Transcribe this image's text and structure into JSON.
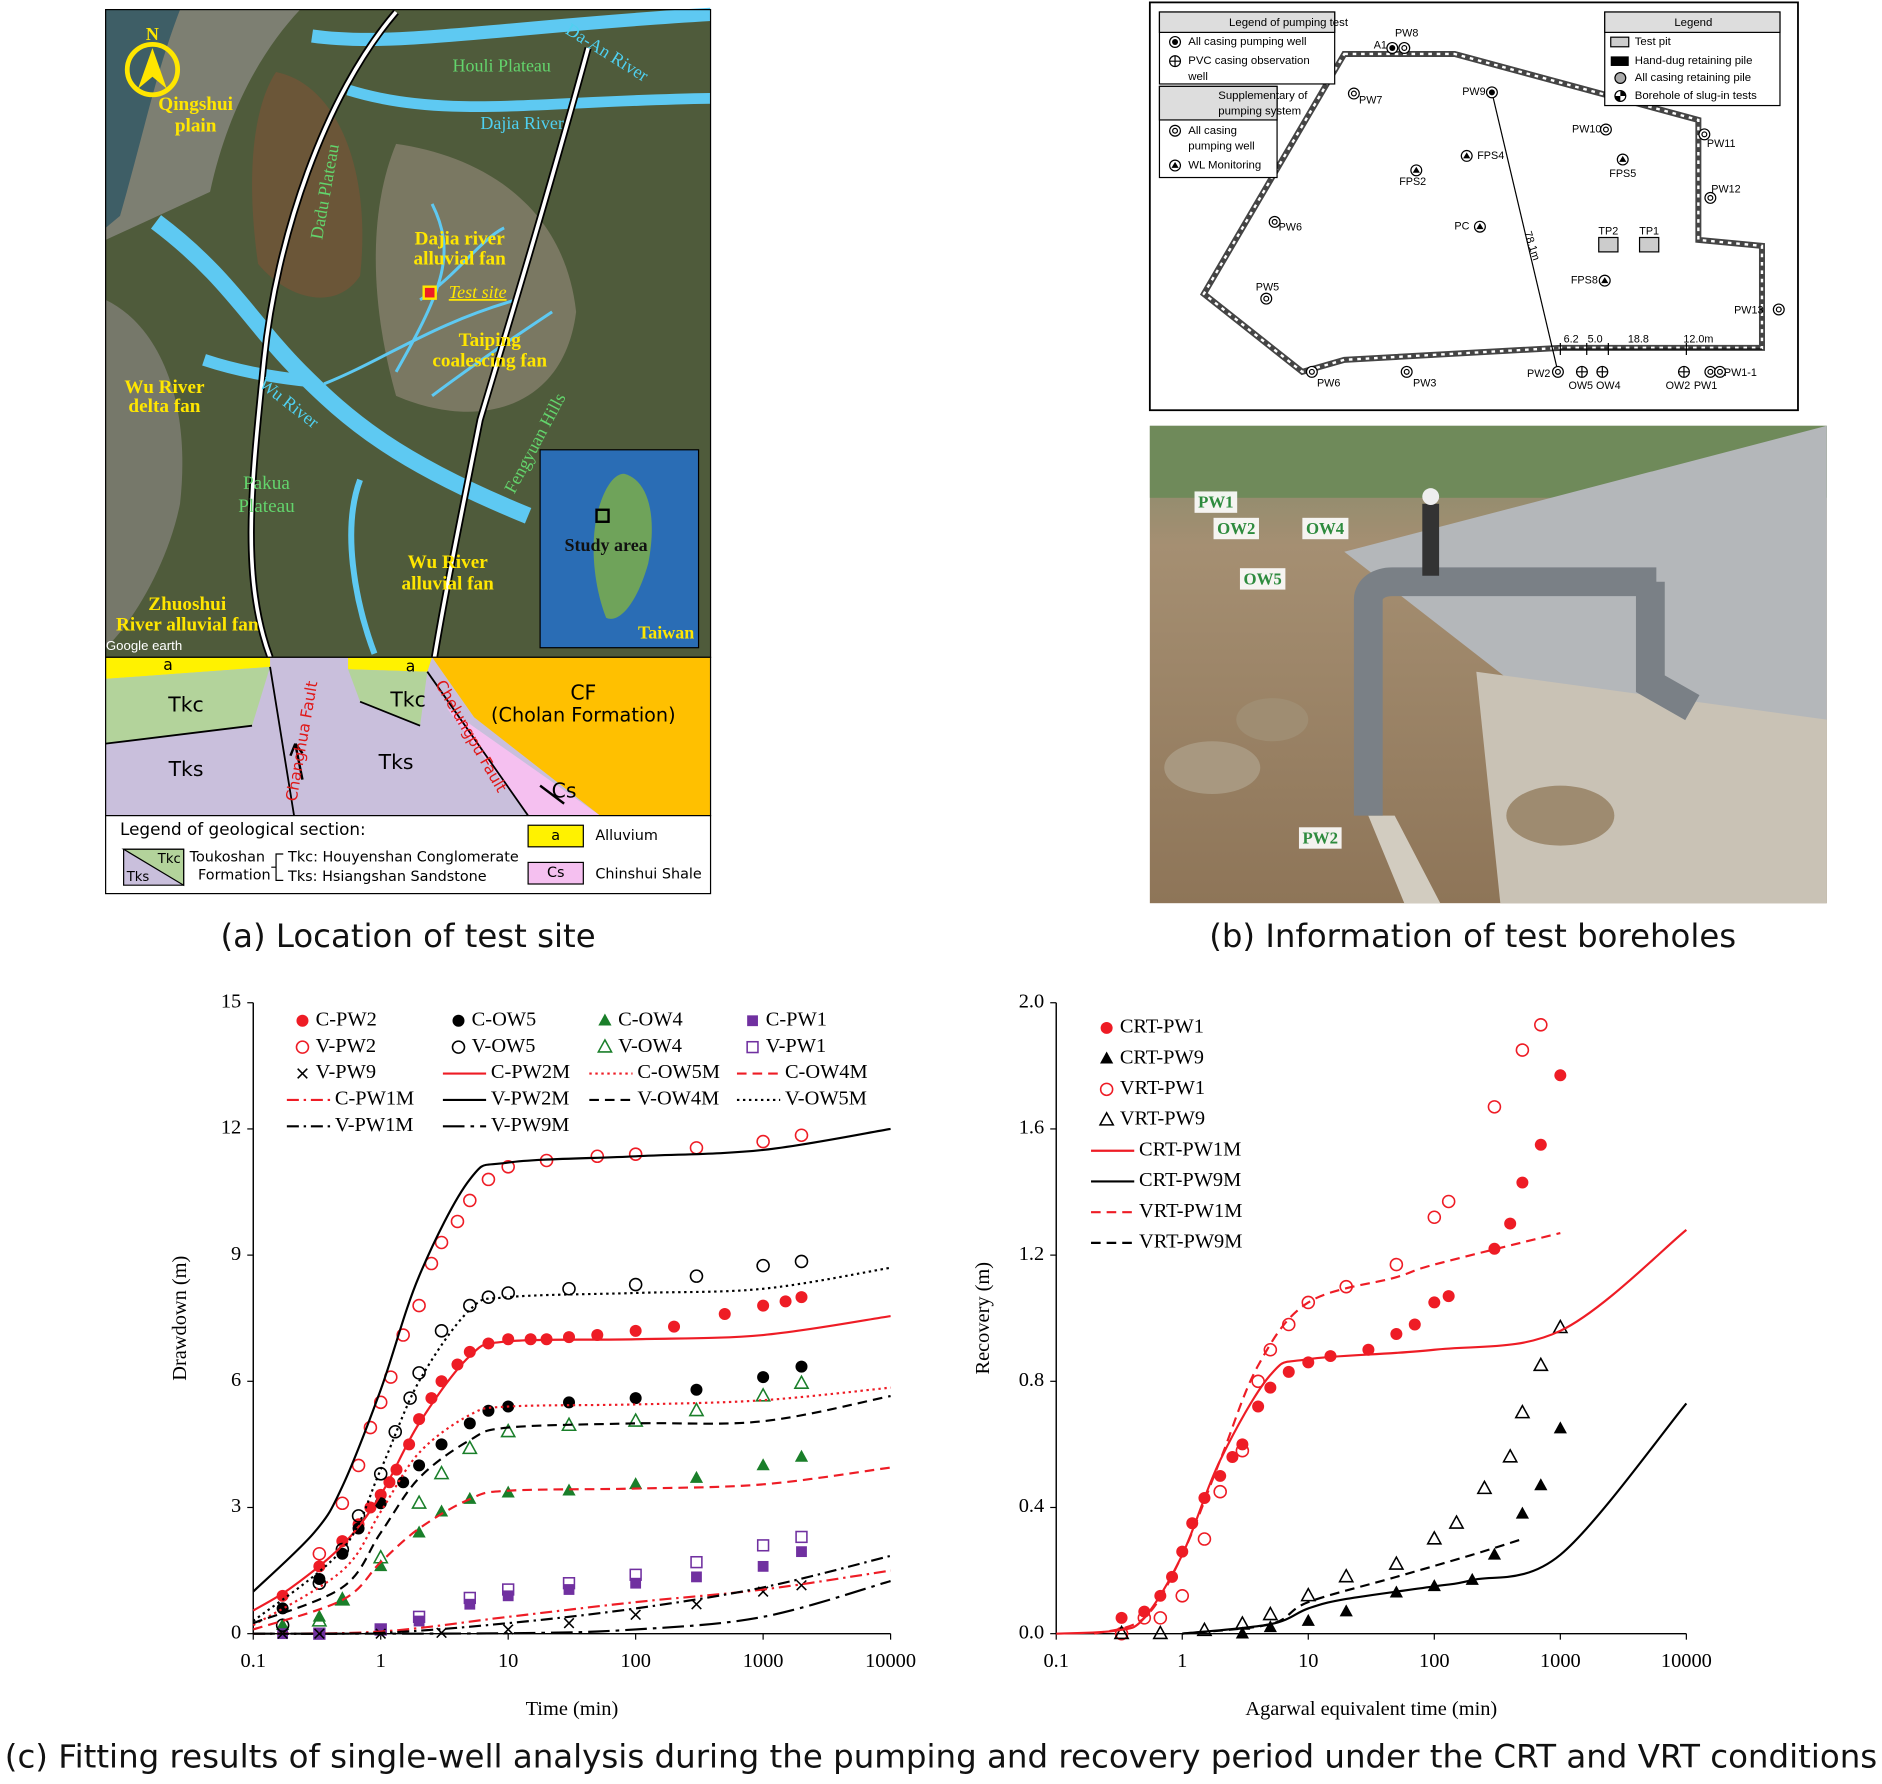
{
  "chart_data": [
    {
      "type": "scatter",
      "xlabel": "Time (min)",
      "ylabel": "Drawdown (m)",
      "xscale": "log",
      "xlim": [
        0.1,
        10000
      ],
      "xticks": [
        0.1,
        1,
        10,
        100,
        1000,
        10000
      ],
      "ylim": [
        0,
        15
      ],
      "yticks": [
        0,
        3,
        6,
        9,
        12,
        15
      ],
      "legend": "upper left",
      "series": [
        {
          "name": "C-PW2",
          "color": "#ee1c25",
          "marker": "circle-filled",
          "x": [
            0.17,
            0.33,
            0.5,
            0.67,
            0.83,
            1,
            1.17,
            1.33,
            1.67,
            2,
            2.5,
            3,
            4,
            5,
            7,
            10,
            15,
            20,
            30,
            50,
            100,
            200,
            500,
            1000,
            1500,
            2000
          ],
          "values": [
            0.9,
            1.6,
            2.2,
            2.6,
            3.0,
            3.3,
            3.6,
            3.9,
            4.5,
            5.1,
            5.6,
            6.0,
            6.4,
            6.7,
            6.9,
            7.0,
            7.0,
            7.0,
            7.05,
            7.1,
            7.2,
            7.3,
            7.6,
            7.8,
            7.9,
            8.0
          ]
        },
        {
          "name": "C-OW5",
          "color": "#000000",
          "marker": "circle-filled",
          "x": [
            0.17,
            0.33,
            0.5,
            0.67,
            1,
            1.5,
            2,
            3,
            5,
            7,
            10,
            30,
            100,
            300,
            1000,
            2000
          ],
          "values": [
            0.6,
            1.3,
            1.9,
            2.5,
            3.1,
            3.6,
            4.0,
            4.5,
            5.0,
            5.3,
            5.4,
            5.5,
            5.6,
            5.8,
            6.1,
            6.35
          ]
        },
        {
          "name": "C-OW4",
          "color": "#1a7f2a",
          "marker": "triangle-filled",
          "x": [
            0.17,
            0.33,
            0.5,
            1,
            2,
            3,
            5,
            10,
            30,
            100,
            300,
            1000,
            2000
          ],
          "values": [
            0.2,
            0.4,
            0.8,
            1.6,
            2.4,
            2.9,
            3.2,
            3.35,
            3.4,
            3.55,
            3.7,
            4.0,
            4.2
          ]
        },
        {
          "name": "C-PW1",
          "color": "#7030a0",
          "marker": "square-filled",
          "x": [
            0.17,
            0.33,
            1,
            2,
            5,
            10,
            30,
            100,
            300,
            1000,
            2000
          ],
          "values": [
            0,
            0,
            0.1,
            0.3,
            0.7,
            0.9,
            1.05,
            1.2,
            1.35,
            1.6,
            1.95
          ]
        },
        {
          "name": "V-PW2",
          "color": "#ee1c25",
          "marker": "circle-open",
          "x": [
            0.33,
            0.5,
            0.67,
            0.83,
            1,
            1.2,
            1.5,
            2,
            2.5,
            3,
            4,
            5,
            7,
            10,
            20,
            50,
            100,
            300,
            1000,
            2000
          ],
          "values": [
            1.9,
            3.1,
            4.0,
            4.9,
            5.5,
            6.1,
            7.1,
            7.8,
            8.8,
            9.3,
            9.8,
            10.3,
            10.8,
            11.1,
            11.25,
            11.35,
            11.4,
            11.55,
            11.7,
            11.85
          ]
        },
        {
          "name": "V-OW5",
          "color": "#000000",
          "marker": "circle-open",
          "x": [
            0.17,
            0.33,
            0.5,
            0.67,
            1,
            1.3,
            1.7,
            2,
            3,
            5,
            7,
            10,
            30,
            100,
            300,
            1000,
            2000
          ],
          "values": [
            0.2,
            1.2,
            2.0,
            2.8,
            3.8,
            4.8,
            5.6,
            6.2,
            7.2,
            7.8,
            8.0,
            8.1,
            8.2,
            8.3,
            8.5,
            8.75,
            8.85
          ]
        },
        {
          "name": "V-OW4",
          "color": "#1a7f2a",
          "marker": "triangle-open",
          "x": [
            0.33,
            0.5,
            1,
            2,
            3,
            5,
            10,
            30,
            100,
            300,
            1000,
            2000
          ],
          "values": [
            0.3,
            0.8,
            1.8,
            3.1,
            3.8,
            4.4,
            4.8,
            4.95,
            5.05,
            5.3,
            5.65,
            5.95
          ]
        },
        {
          "name": "V-PW1",
          "color": "#7030a0",
          "marker": "square-open",
          "x": [
            0.33,
            1,
            2,
            5,
            10,
            30,
            100,
            300,
            1000,
            2000
          ],
          "values": [
            0,
            0.1,
            0.4,
            0.85,
            1.05,
            1.2,
            1.4,
            1.7,
            2.1,
            2.3
          ]
        },
        {
          "name": "V-PW9",
          "color": "#000000",
          "marker": "x",
          "x": [
            0.17,
            0.33,
            1,
            3,
            10,
            30,
            100,
            300,
            1000,
            2000
          ],
          "values": [
            0,
            0,
            0,
            0.02,
            0.1,
            0.25,
            0.45,
            0.7,
            1.0,
            1.15
          ]
        },
        {
          "name": "C-PW2M",
          "color": "#ee1c25",
          "line": "solid",
          "x": [
            0.1,
            0.2,
            0.5,
            1,
            2,
            5,
            10,
            100,
            1000,
            10000
          ],
          "values": [
            0.55,
            1.1,
            2.1,
            3.3,
            5.0,
            6.6,
            6.95,
            7.0,
            7.1,
            7.55
          ]
        },
        {
          "name": "C-OW5M",
          "color": "#ee1c25",
          "line": "dotted",
          "x": [
            0.1,
            0.5,
            1,
            2,
            5,
            10,
            100,
            1000,
            10000
          ],
          "values": [
            0.2,
            1.5,
            2.9,
            4.3,
            5.2,
            5.4,
            5.45,
            5.55,
            5.85
          ]
        },
        {
          "name": "C-OW4M",
          "color": "#ee1c25",
          "line": "dashed",
          "x": [
            0.1,
            0.5,
            1,
            2,
            5,
            10,
            100,
            1000,
            10000
          ],
          "values": [
            0.1,
            0.8,
            1.7,
            2.5,
            3.2,
            3.4,
            3.45,
            3.55,
            3.95
          ]
        },
        {
          "name": "C-PW1M",
          "color": "#ee1c25",
          "line": "dashdot",
          "x": [
            0.1,
            1,
            10,
            100,
            1000,
            10000
          ],
          "values": [
            0,
            0.05,
            0.4,
            0.75,
            1.05,
            1.5
          ]
        },
        {
          "name": "V-PW2M",
          "color": "#000000",
          "line": "solid",
          "x": [
            0.1,
            0.3,
            0.5,
            1,
            2,
            5,
            10,
            100,
            1000,
            10000
          ],
          "values": [
            1.0,
            2.4,
            3.5,
            5.8,
            8.5,
            10.8,
            11.2,
            11.35,
            11.5,
            12.0
          ]
        },
        {
          "name": "V-OW4M",
          "color": "#000000",
          "line": "dashed",
          "x": [
            0.1,
            0.5,
            1,
            2,
            5,
            10,
            100,
            1000,
            10000
          ],
          "values": [
            0.25,
            1.1,
            2.4,
            3.7,
            4.6,
            4.9,
            5.0,
            5.05,
            5.65
          ]
        },
        {
          "name": "V-OW5M",
          "color": "#000000",
          "line": "dotted",
          "x": [
            0.1,
            0.5,
            1,
            2,
            5,
            10,
            100,
            1000,
            10000
          ],
          "values": [
            0.3,
            2.0,
            3.9,
            6.0,
            7.7,
            8.0,
            8.1,
            8.2,
            8.7
          ]
        },
        {
          "name": "V-PW1M",
          "color": "#000000",
          "line": "dashdot",
          "x": [
            0.1,
            1,
            10,
            100,
            1000,
            10000
          ],
          "values": [
            0,
            0.02,
            0.25,
            0.6,
            1.1,
            1.85
          ]
        },
        {
          "name": "V-PW9M",
          "color": "#000000",
          "line": "longdashdot",
          "x": [
            0.1,
            10,
            100,
            1000,
            10000
          ],
          "values": [
            0,
            0.01,
            0.1,
            0.4,
            1.25
          ]
        }
      ]
    },
    {
      "type": "scatter",
      "xlabel": "Agarwal equivalent time (min)",
      "ylabel": "Recovery (m)",
      "xscale": "log",
      "xlim": [
        0.1,
        10000
      ],
      "xticks": [
        0.1,
        1,
        10,
        100,
        1000,
        10000
      ],
      "ylim": [
        0,
        2
      ],
      "yticks": [
        {
          "value": 0,
          "label": "0.0"
        },
        0.4,
        0.8,
        1.2,
        1.6,
        {
          "value": 2,
          "label": "2.0"
        }
      ],
      "legend": "upper left",
      "series": [
        {
          "name": "CRT-PW1",
          "color": "#ee1c25",
          "marker": "circle-filled",
          "x": [
            0.33,
            0.5,
            0.67,
            0.83,
            1,
            1.2,
            1.5,
            2,
            2.5,
            3,
            4,
            5,
            7,
            10,
            15,
            30,
            50,
            70,
            100,
            130,
            300,
            400,
            500,
            700,
            1000
          ],
          "values": [
            0.05,
            0.07,
            0.12,
            0.18,
            0.26,
            0.35,
            0.43,
            0.5,
            0.56,
            0.6,
            0.72,
            0.78,
            0.83,
            0.86,
            0.88,
            0.9,
            0.95,
            0.98,
            1.05,
            1.07,
            1.22,
            1.3,
            1.43,
            1.55,
            1.77
          ]
        },
        {
          "name": "CRT-PW9",
          "color": "#000000",
          "marker": "triangle-filled",
          "x": [
            3,
            5,
            10,
            20,
            50,
            100,
            200,
            300,
            500,
            700,
            1000
          ],
          "values": [
            0,
            0.02,
            0.04,
            0.07,
            0.13,
            0.15,
            0.17,
            0.25,
            0.38,
            0.47,
            0.65
          ]
        },
        {
          "name": "VRT-PW1",
          "color": "#ee1c25",
          "marker": "circle-open",
          "x": [
            0.33,
            0.5,
            0.67,
            1,
            1.5,
            2,
            3,
            4,
            5,
            7,
            10,
            20,
            50,
            100,
            130,
            300,
            500,
            700
          ],
          "values": [
            0,
            0.05,
            0.05,
            0.12,
            0.3,
            0.45,
            0.58,
            0.8,
            0.9,
            0.98,
            1.05,
            1.1,
            1.17,
            1.32,
            1.37,
            1.67,
            1.85,
            1.93
          ]
        },
        {
          "name": "VRT-PW9",
          "color": "#000000",
          "marker": "triangle-open",
          "x": [
            0.33,
            0.67,
            1.5,
            3,
            5,
            10,
            20,
            50,
            100,
            150,
            250,
            400,
            500,
            700,
            1000
          ],
          "values": [
            0,
            0,
            0.01,
            0.03,
            0.06,
            0.12,
            0.18,
            0.22,
            0.3,
            0.35,
            0.46,
            0.56,
            0.7,
            0.85,
            0.97
          ]
        },
        {
          "name": "CRT-PW1M",
          "color": "#ee1c25",
          "line": "solid",
          "x": [
            0.1,
            0.3,
            0.5,
            1,
            2,
            5,
            10,
            100,
            1000,
            10000
          ],
          "values": [
            0,
            0.01,
            0.05,
            0.25,
            0.55,
            0.82,
            0.87,
            0.9,
            0.96,
            1.28
          ]
        },
        {
          "name": "CRT-PW9M",
          "color": "#000000",
          "line": "solid",
          "x": [
            1,
            5,
            10,
            20,
            100,
            200,
            1000,
            10000
          ],
          "values": [
            0,
            0.03,
            0.08,
            0.11,
            0.15,
            0.17,
            0.25,
            0.73
          ]
        },
        {
          "name": "VRT-PW1M",
          "color": "#ee1c25",
          "line": "dashed",
          "x": [
            0.2,
            0.5,
            1,
            2,
            4,
            10,
            50,
            100,
            1000
          ],
          "values": [
            0,
            0.05,
            0.25,
            0.55,
            0.85,
            1.05,
            1.13,
            1.17,
            1.27
          ]
        },
        {
          "name": "VRT-PW9M",
          "color": "#000000",
          "line": "dashed",
          "x": [
            1,
            5,
            10,
            50,
            200,
            500
          ],
          "values": [
            0,
            0.03,
            0.1,
            0.18,
            0.25,
            0.3
          ]
        }
      ]
    }
  ],
  "panel_a": {
    "caption": "(a) Location of test site",
    "map_labels": [
      "N",
      "Qingshui",
      "plain",
      "Houli Plateau",
      "Da-An River",
      "Dajia River",
      "Dadu Plateau",
      "Dajia river",
      "alluvial fan",
      "Test site",
      "Taiping",
      "coalescing fan",
      "Wu River",
      "delta fan",
      "Wu River",
      "Fengyuan Hills",
      "Pakua",
      "Plateau",
      "Zhuoshui",
      "River alluvial fan",
      "Wu River",
      "alluvial fan",
      "Study area",
      "Taiwan",
      "Google earth"
    ],
    "section_labels": [
      "a",
      "a",
      "Tkc",
      "Tkc",
      "CF",
      "(Cholan Formation)",
      "Tks",
      "Tks",
      "Cs",
      "Changhua Fault",
      "Chelungpu Fault"
    ],
    "legend": [
      "Legend of geological section:",
      "Tkc",
      "Tks",
      "Toukoshan",
      "Formation",
      "Tkc: Houyenshan Conglomerate",
      "Tks: Hsiangshan Sandstone",
      "a",
      "Alluvium",
      "Cs",
      "Chinshui Shale"
    ]
  },
  "panel_b": {
    "caption": "(b) Information of test boreholes",
    "legend_pumping": [
      "Legend of pumping test",
      "All casing pumping well",
      "PVC casing observation",
      "well",
      "Supplementary of",
      "pumping system",
      "All casing",
      "pumping well",
      "WL Monitoring"
    ],
    "legend": [
      "Legend",
      "Test pit",
      "Hand-dug retaining pile",
      "All casing retaining pile",
      "Borehole of slug-in tests"
    ],
    "plan_labels": [
      "PW8",
      "A1",
      "PW7",
      "PW9",
      "PW10",
      "PW11",
      "FPS4",
      "FPS5",
      "FPS2",
      "PW12",
      "PW6",
      "PC",
      "TP2",
      "TP1",
      "78.1m",
      "PW5",
      "FPS8",
      "PW13",
      "6.2",
      "5.0",
      "18.8",
      "12.0m",
      "PW6",
      "PW3",
      "PW2",
      "OW5",
      "OW4",
      "OW2",
      "PW1",
      "PW1-1"
    ],
    "photo_labels": [
      "PW1",
      "OW2",
      "OW4",
      "OW5",
      "PW2"
    ]
  },
  "panel_c": {
    "caption": "(c) Fitting results of single-well analysis during the pumping and recovery period under the CRT and VRT conditions"
  }
}
